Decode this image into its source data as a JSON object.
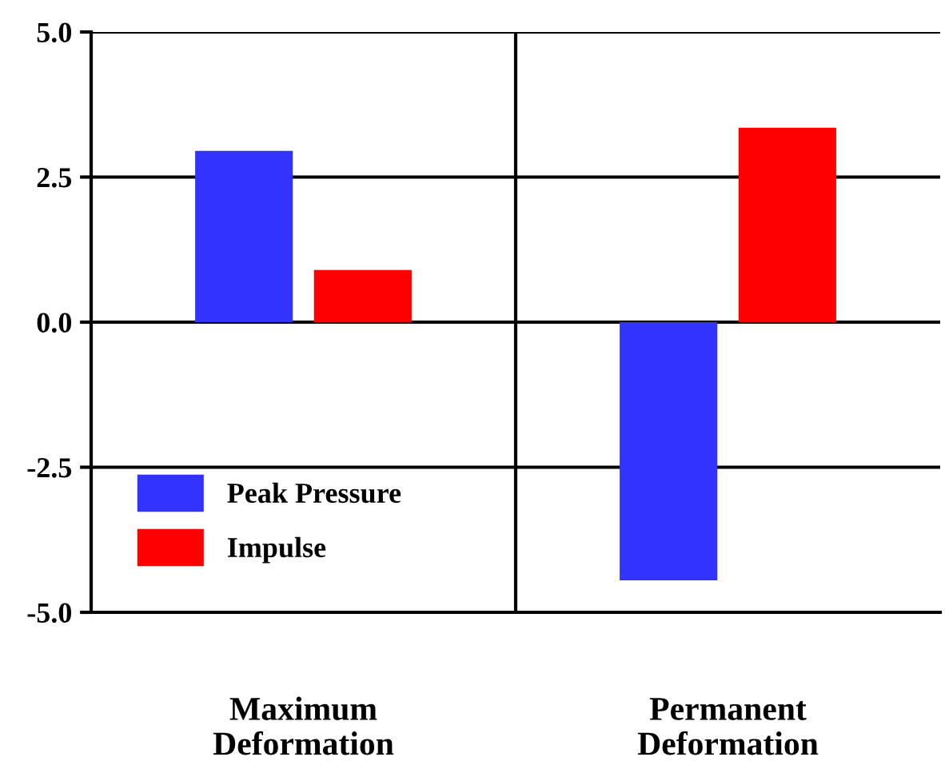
{
  "chart_data": {
    "type": "bar",
    "categories": [
      "Maximum\nDeformation",
      "Permanent\nDeformation"
    ],
    "series": [
      {
        "name": "Peak Pressure",
        "color": "#3333ff",
        "values": [
          2.95,
          -4.45
        ]
      },
      {
        "name": "Impulse",
        "color": "#ff0000",
        "values": [
          0.9,
          3.35
        ]
      }
    ],
    "ylim": [
      -5.0,
      5.0
    ],
    "yticks": [
      {
        "value": 5.0,
        "label": "5.0"
      },
      {
        "value": 2.5,
        "label": "2.5"
      },
      {
        "value": 0.0,
        "label": "0.0"
      },
      {
        "value": -2.5,
        "label": "-2.5"
      },
      {
        "value": -5.0,
        "label": "-5.0"
      }
    ],
    "grid": "y",
    "legend": "bottom left"
  }
}
